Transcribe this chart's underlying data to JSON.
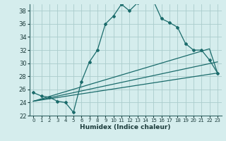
{
  "xlabel": "Humidex (Indice chaleur)",
  "background_color": "#d5eded",
  "grid_color": "#aacccc",
  "line_color": "#1a6b6b",
  "xlim": [
    -0.5,
    23.5
  ],
  "ylim": [
    22,
    39
  ],
  "yticks": [
    22,
    24,
    26,
    28,
    30,
    32,
    34,
    36,
    38
  ],
  "xticks": [
    0,
    1,
    2,
    3,
    4,
    5,
    6,
    7,
    8,
    9,
    10,
    11,
    12,
    13,
    14,
    15,
    16,
    17,
    18,
    19,
    20,
    21,
    22,
    23
  ],
  "x": [
    0,
    1,
    2,
    3,
    4,
    5,
    6,
    7,
    8,
    9,
    10,
    11,
    12,
    13,
    14,
    15,
    16,
    17,
    18,
    19,
    20,
    21,
    22,
    23
  ],
  "y_main": [
    25.5,
    25.0,
    24.8,
    24.2,
    24.0,
    22.5,
    27.2,
    30.2,
    32.0,
    36.0,
    37.2,
    39.0,
    38.0,
    39.2,
    39.3,
    39.5,
    36.8,
    36.2,
    35.5,
    33.0,
    32.0,
    32.0,
    30.5,
    28.5
  ],
  "ref_lines": [
    {
      "x": [
        0,
        23
      ],
      "y": [
        24.2,
        28.5
      ]
    },
    {
      "x": [
        0,
        23
      ],
      "y": [
        24.2,
        30.2
      ]
    },
    {
      "x": [
        0,
        22,
        23
      ],
      "y": [
        24.2,
        32.2,
        28.5
      ]
    }
  ]
}
